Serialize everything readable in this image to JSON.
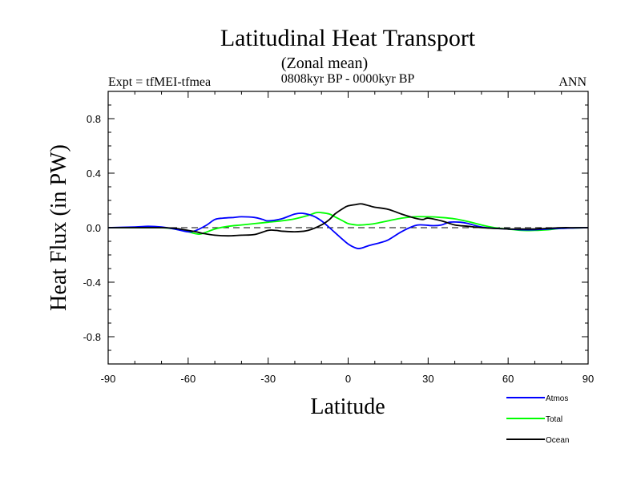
{
  "chart_data": {
    "type": "line",
    "title": "Latitudinal Heat Transport",
    "subtitle": "(Zonal mean)",
    "period": "0808kyr BP - 0000kyr BP",
    "left_label": "Expt = tfMEI-tfmea",
    "right_label": "ANN",
    "xlabel": "Latitude",
    "ylabel": "Heat Flux (in PW)",
    "xlim": [
      -90,
      90
    ],
    "ylim": [
      -1.0,
      1.0
    ],
    "xticks": [
      -90,
      -60,
      -30,
      0,
      30,
      60,
      90
    ],
    "xtick_labels": [
      "-90",
      "-60",
      "-30",
      "0",
      "30",
      "60",
      "90"
    ],
    "yticks": [
      -0.8,
      -0.4,
      0.0,
      0.4,
      0.8
    ],
    "ytick_labels": [
      "-0.8",
      "-0.4",
      "0.0",
      "0.4",
      "0.8"
    ],
    "zero_line": "dashed",
    "legend_position": "bottom-right",
    "series": [
      {
        "name": "Atmos",
        "color": "#0000ff",
        "x": [
          -90,
          -80,
          -75,
          -70,
          -65,
          -60,
          -57,
          -53,
          -50,
          -47,
          -43,
          -40,
          -35,
          -32,
          -30,
          -25,
          -20,
          -17,
          -13,
          -10,
          -7,
          -3,
          0,
          3,
          5,
          8,
          12,
          15,
          20,
          25,
          28,
          32,
          35,
          38,
          42,
          45,
          50,
          55,
          60,
          65,
          70,
          75,
          80,
          85,
          90
        ],
        "y": [
          0.0,
          0.005,
          0.01,
          0.005,
          -0.01,
          -0.03,
          -0.02,
          0.02,
          0.06,
          0.07,
          0.075,
          0.08,
          0.075,
          0.06,
          0.05,
          0.065,
          0.1,
          0.105,
          0.085,
          0.05,
          0.0,
          -0.07,
          -0.12,
          -0.15,
          -0.15,
          -0.13,
          -0.11,
          -0.09,
          -0.03,
          0.015,
          0.02,
          0.015,
          0.02,
          0.04,
          0.04,
          0.03,
          0.005,
          -0.005,
          -0.01,
          -0.015,
          -0.015,
          -0.01,
          -0.005,
          -0.002,
          0.0
        ]
      },
      {
        "name": "Total",
        "color": "#00ff00",
        "x": [
          -90,
          -80,
          -70,
          -65,
          -60,
          -57,
          -55,
          -50,
          -45,
          -40,
          -35,
          -30,
          -25,
          -20,
          -15,
          -12,
          -10,
          -7,
          -5,
          -2,
          0,
          3,
          5,
          8,
          10,
          15,
          20,
          25,
          30,
          35,
          40,
          45,
          50,
          55,
          60,
          65,
          70,
          75,
          80,
          85,
          90
        ],
        "y": [
          0.0,
          0.0,
          0.0,
          -0.01,
          -0.03,
          -0.045,
          -0.045,
          -0.01,
          0.01,
          0.02,
          0.03,
          0.04,
          0.05,
          0.065,
          0.09,
          0.11,
          0.11,
          0.1,
          0.08,
          0.05,
          0.03,
          0.02,
          0.02,
          0.025,
          0.03,
          0.05,
          0.07,
          0.08,
          0.08,
          0.075,
          0.065,
          0.045,
          0.02,
          0.0,
          -0.01,
          -0.02,
          -0.02,
          -0.015,
          -0.005,
          -0.002,
          0.0
        ]
      },
      {
        "name": "Ocean",
        "color": "#000000",
        "x": [
          -90,
          -80,
          -70,
          -65,
          -60,
          -57,
          -55,
          -50,
          -45,
          -40,
          -35,
          -30,
          -27,
          -25,
          -20,
          -15,
          -10,
          -7,
          -5,
          -2,
          0,
          3,
          5,
          8,
          10,
          15,
          20,
          25,
          28,
          30,
          35,
          40,
          45,
          50,
          55,
          60,
          65,
          70,
          75,
          80,
          85,
          90
        ],
        "y": [
          0.0,
          0.0,
          0.0,
          -0.005,
          -0.02,
          -0.03,
          -0.04,
          -0.055,
          -0.06,
          -0.055,
          -0.05,
          -0.02,
          -0.02,
          -0.025,
          -0.03,
          -0.02,
          0.02,
          0.06,
          0.1,
          0.14,
          0.16,
          0.17,
          0.175,
          0.16,
          0.15,
          0.135,
          0.1,
          0.07,
          0.06,
          0.07,
          0.05,
          0.02,
          0.01,
          0.0,
          -0.005,
          -0.01,
          -0.01,
          -0.01,
          -0.005,
          0.0,
          0.0,
          0.0
        ]
      }
    ]
  }
}
